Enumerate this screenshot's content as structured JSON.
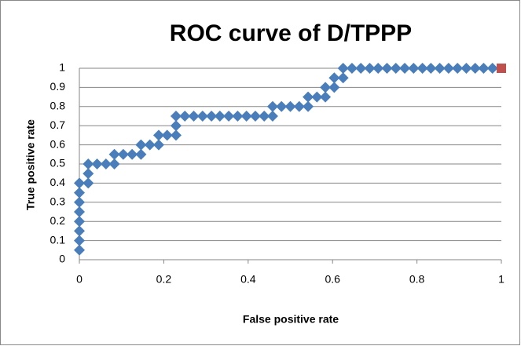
{
  "chart_data": {
    "type": "scatter",
    "title": "ROC curve of D/TPPP",
    "x_label": "False positive rate",
    "y_label": "True positive rate",
    "series": [
      {
        "color": "#4a7ebb",
        "last_point_color": "#c0504d",
        "x": [
          0,
          0,
          0,
          0,
          0,
          0,
          0,
          0,
          0.021,
          0.021,
          0.021,
          0.042,
          0.063,
          0.083,
          0.083,
          0.104,
          0.125,
          0.146,
          0.146,
          0.167,
          0.188,
          0.188,
          0.208,
          0.229,
          0.229,
          0.229,
          0.25,
          0.271,
          0.292,
          0.313,
          0.333,
          0.354,
          0.375,
          0.396,
          0.417,
          0.438,
          0.458,
          0.458,
          0.479,
          0.5,
          0.521,
          0.542,
          0.542,
          0.563,
          0.583,
          0.583,
          0.604,
          0.604,
          0.625,
          0.625,
          0.646,
          0.667,
          0.688,
          0.708,
          0.729,
          0.75,
          0.771,
          0.792,
          0.813,
          0.833,
          0.854,
          0.875,
          0.896,
          0.917,
          0.938,
          0.958,
          0.979,
          1
        ],
        "values": [
          0.05,
          0.1,
          0.15,
          0.2,
          0.25,
          0.3,
          0.35,
          0.4,
          0.4,
          0.45,
          0.5,
          0.5,
          0.5,
          0.5,
          0.55,
          0.55,
          0.55,
          0.55,
          0.6,
          0.6,
          0.6,
          0.65,
          0.65,
          0.65,
          0.7,
          0.75,
          0.75,
          0.75,
          0.75,
          0.75,
          0.75,
          0.75,
          0.75,
          0.75,
          0.75,
          0.75,
          0.75,
          0.8,
          0.8,
          0.8,
          0.8,
          0.8,
          0.85,
          0.85,
          0.85,
          0.9,
          0.9,
          0.95,
          0.95,
          1,
          1,
          1,
          1,
          1,
          1,
          1,
          1,
          1,
          1,
          1,
          1,
          1,
          1,
          1,
          1,
          1,
          1,
          1
        ]
      }
    ],
    "xlim": [
      0,
      1
    ],
    "xticks": [
      0,
      0.2,
      0.4,
      0.6,
      0.8,
      1
    ],
    "ylim": [
      0,
      1
    ],
    "yticks": [
      0,
      0.1,
      0.2,
      0.3,
      0.4,
      0.5,
      0.6,
      0.7,
      0.8,
      0.9,
      1
    ],
    "grid": true
  }
}
